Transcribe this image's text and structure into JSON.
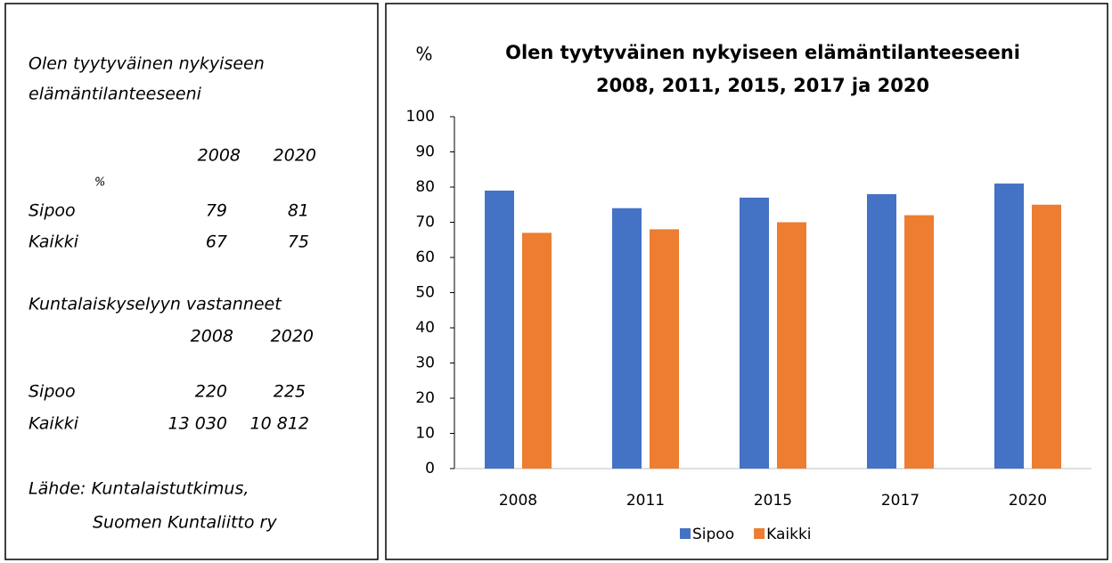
{
  "side_panel": {
    "title": [
      "Olen tyytyväinen nykyiseen",
      "elämäntilanteeseeni"
    ],
    "table1": {
      "header": [
        "2008",
        "2020"
      ],
      "unit": "%",
      "rows": [
        [
          "Sipoo",
          "79",
          "81"
        ],
        [
          "Kaikki",
          "67",
          "75"
        ]
      ]
    },
    "table2": {
      "title": "Kuntalaiskyselyyn vastanneet",
      "header": [
        "2008",
        "2020"
      ],
      "rows": [
        [
          "Sipoo",
          "220",
          "225"
        ],
        [
          "Kaikki",
          "13 030",
          "10 812"
        ]
      ]
    },
    "source": [
      "Lähde: Kuntalaistutkimus,",
      "Suomen Kuntaliitto ry"
    ]
  },
  "chart_data": {
    "type": "bar",
    "title": [
      "Olen tyytyväinen nykyiseen elämäntilanteeseeni",
      "2008, 2011, 2015, 2017 ja 2020"
    ],
    "y_label": "%",
    "categories": [
      "2008",
      "2011",
      "2015",
      "2017",
      "2020"
    ],
    "series": [
      {
        "name": "Sipoo",
        "color": "#4472c4",
        "values": [
          79,
          74,
          77,
          78,
          81
        ]
      },
      {
        "name": "Kaikki",
        "color": "#ed7d31",
        "values": [
          67,
          68,
          70,
          72,
          75
        ]
      }
    ],
    "ylim": [
      0,
      100
    ],
    "yticks": [
      0,
      10,
      20,
      30,
      40,
      50,
      60,
      70,
      80,
      90,
      100
    ],
    "grid": false,
    "legend": "bottom"
  }
}
